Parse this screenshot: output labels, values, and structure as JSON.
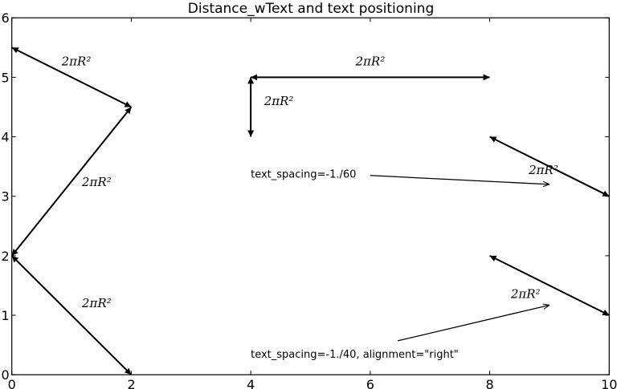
{
  "chart_data": {
    "type": "annotated-arrows",
    "title": "Distance_wText and text positioning",
    "xlabel": "",
    "ylabel": "",
    "xlim": [
      0,
      10
    ],
    "ylim": [
      0,
      6
    ],
    "xticks": [
      "0",
      "2",
      "4",
      "6",
      "8",
      "10"
    ],
    "yticks": [
      "0",
      "1",
      "2",
      "3",
      "4",
      "5",
      "6"
    ],
    "grid": false,
    "distance_arrows": [
      {
        "from": [
          0,
          5.5
        ],
        "to": [
          2,
          4.5
        ],
        "label": "2πR²",
        "label_pos": [
          1.08,
          5.27
        ]
      },
      {
        "from": [
          2,
          4.5
        ],
        "to": [
          0,
          2
        ],
        "label": "2πR²",
        "label_pos": [
          1.42,
          3.24
        ]
      },
      {
        "from": [
          0,
          2
        ],
        "to": [
          2,
          0
        ],
        "label": "2πR²",
        "label_pos": [
          1.42,
          1.2
        ]
      },
      {
        "from": [
          4,
          5
        ],
        "to": [
          8,
          5
        ],
        "label": "2πR²",
        "label_pos": [
          6.0,
          5.27
        ]
      },
      {
        "from": [
          4,
          5
        ],
        "to": [
          4,
          4
        ],
        "label": "2πR²",
        "label_pos": [
          4.47,
          4.6
        ]
      },
      {
        "from": [
          8,
          4
        ],
        "to": [
          10,
          3
        ],
        "label": "2πR²",
        "label_pos": [
          8.9,
          3.44
        ]
      },
      {
        "from": [
          8,
          2
        ],
        "to": [
          10,
          1
        ],
        "label": "2πR²",
        "label_pos": [
          8.6,
          1.36
        ]
      }
    ],
    "annotations": [
      {
        "text": "text_spacing=-1./60",
        "text_pos": [
          4,
          3.38
        ],
        "arrow_from": [
          6.0,
          3.35
        ],
        "arrow_to": [
          9.0,
          3.2
        ]
      },
      {
        "text": "text_spacing=-1./40, alignment=\"right\"",
        "text_pos": [
          4,
          0.35
        ],
        "arrow_from": [
          6.46,
          0.57
        ],
        "arrow_to": [
          9.0,
          1.17
        ]
      }
    ]
  }
}
